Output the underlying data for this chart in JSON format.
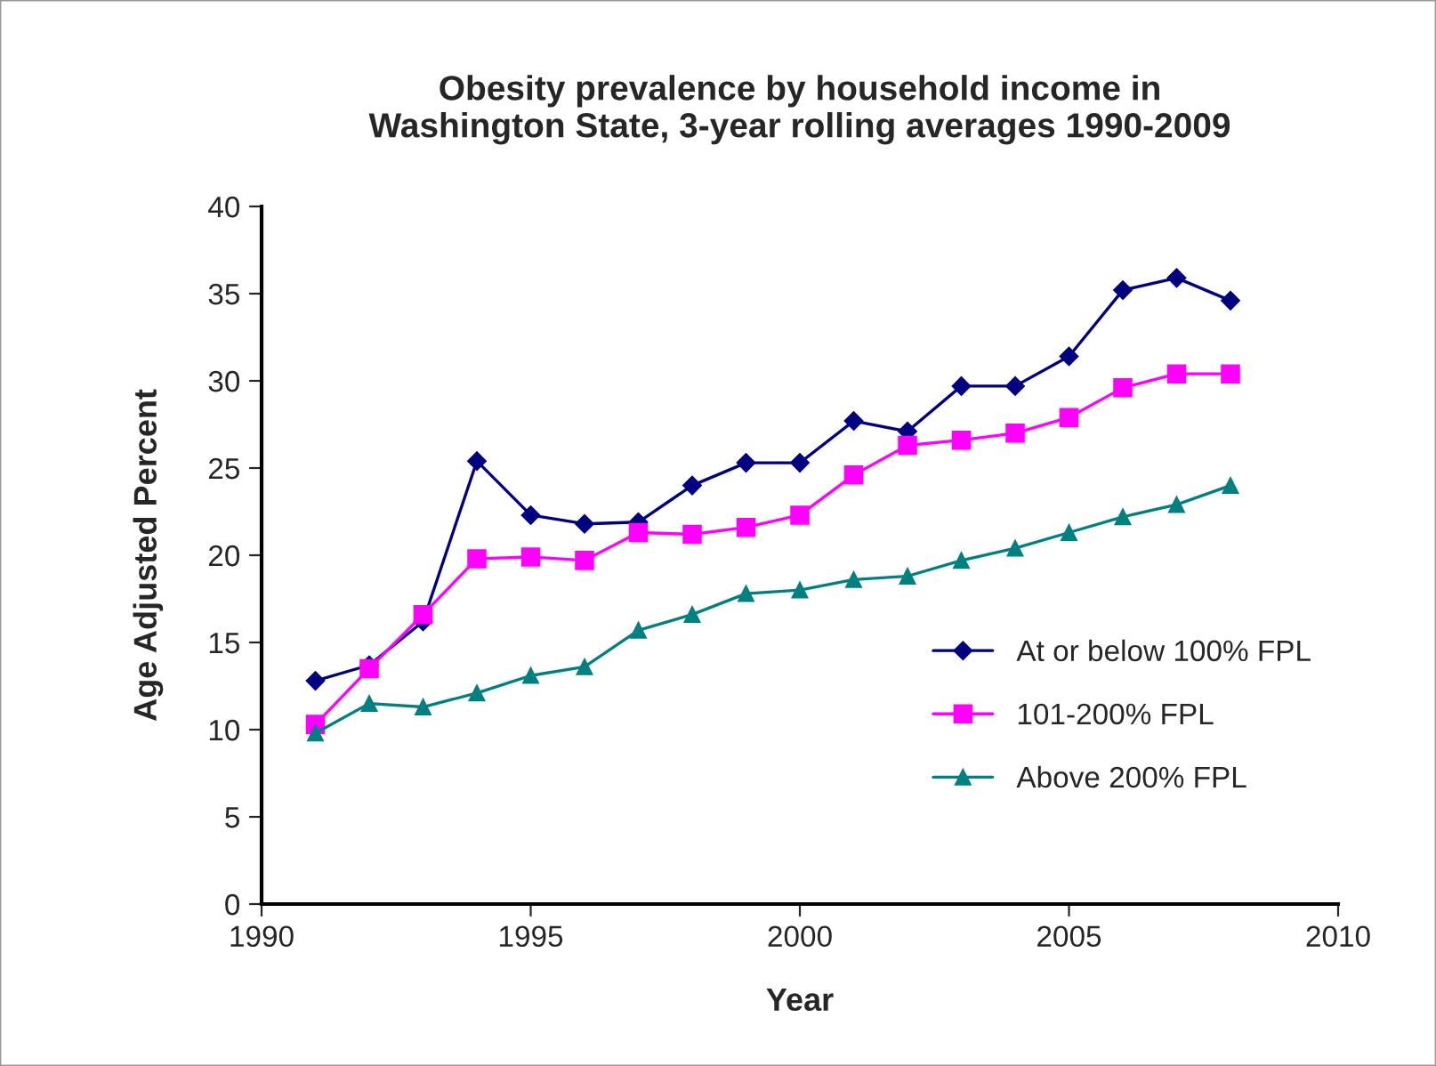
{
  "chart_data": {
    "type": "line",
    "title": "Obesity prevalence by household income in\nWashington State, 3-year rolling averages 1990-2009",
    "xlabel": "Year",
    "ylabel": "Age Adjusted Percent",
    "x": [
      1991,
      1992,
      1993,
      1994,
      1995,
      1996,
      1997,
      1998,
      1999,
      2000,
      2001,
      2002,
      2003,
      2004,
      2005,
      2006,
      2007,
      2008
    ],
    "series": [
      {
        "name": "At or below 100% FPL",
        "color": "#000080",
        "marker": "diamond",
        "values": [
          12.8,
          13.7,
          16.2,
          25.4,
          22.3,
          21.8,
          21.9,
          24.0,
          25.3,
          25.3,
          27.7,
          27.1,
          29.7,
          29.7,
          31.4,
          35.2,
          35.9,
          34.6
        ]
      },
      {
        "name": "101-200% FPL",
        "color": "#ff00ff",
        "marker": "square",
        "values": [
          10.3,
          13.5,
          16.6,
          19.8,
          19.9,
          19.7,
          21.3,
          21.2,
          21.6,
          22.3,
          24.6,
          26.3,
          26.6,
          27.0,
          27.9,
          29.6,
          30.4,
          30.4
        ]
      },
      {
        "name": "Above 200% FPL",
        "color": "#008080",
        "marker": "triangle",
        "values": [
          9.8,
          11.5,
          11.3,
          12.1,
          13.1,
          13.6,
          15.7,
          16.6,
          17.8,
          18.0,
          18.6,
          18.8,
          19.7,
          20.4,
          21.3,
          22.2,
          22.9,
          24.0
        ]
      }
    ],
    "xlim": [
      1990,
      2010
    ],
    "xticks": [
      1990,
      1995,
      2000,
      2005,
      2010
    ],
    "ylim": [
      0,
      40
    ],
    "yticks": [
      0,
      5,
      10,
      15,
      20,
      25,
      30,
      35,
      40
    ],
    "grid": false,
    "legend": "bottom right"
  }
}
